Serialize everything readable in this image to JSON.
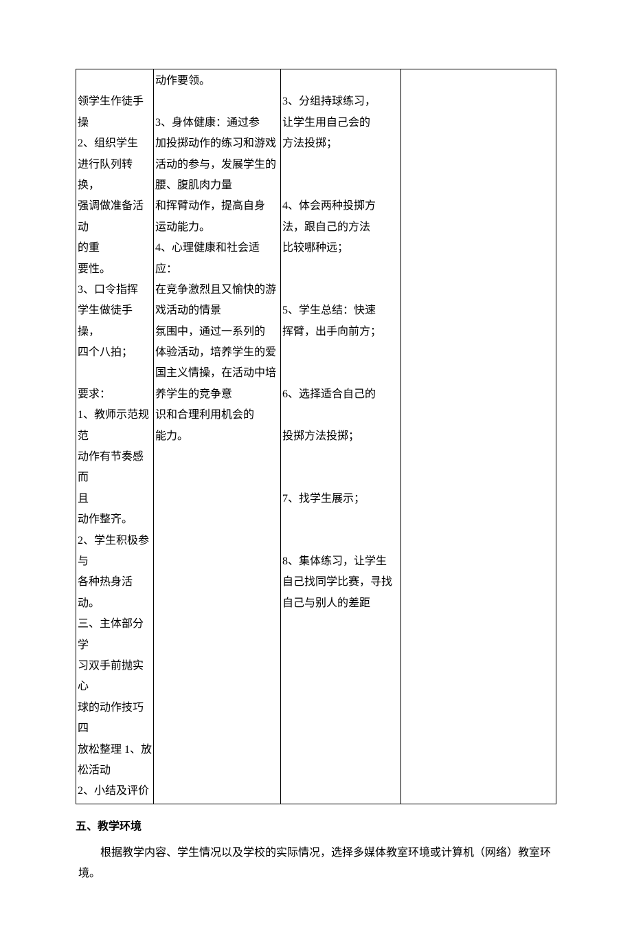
{
  "table": {
    "col1": [
      "",
      "领学生作徒手操",
      "2、组织学生",
      "进行队列转换，",
      "强调做准备活动",
      "的重",
      "要性。",
      "3、口令指挥",
      "学生做徒手操，",
      "四个八拍；",
      "",
      "要求：",
      "1、教师示范规范",
      "动作有节奏感而",
      "且",
      "动作整齐。",
      "2、学生积极参与",
      "各种热身活动。",
      "三、主体部分学",
      "习双手前抛实心",
      "球的动作技巧四",
      "放松整理 1、放",
      "松活动",
      "2、小结及评价"
    ],
    "col2": [
      "动作要领。",
      "",
      "3、身体健康：通过参",
      "加投掷动作的练习和游戏",
      "活动的参与，发展学生的",
      "腰、腹肌肉力量",
      "和挥臂动作，提高自身",
      "运动能力。",
      "4、心理健康和社会适应：",
      "在竞争激烈且又愉快的游",
      "戏活动的情景",
      "氛围中，通过一系列的",
      "体验活动，培养学生的爱",
      "国主义情操，在活动中培",
      "养学生的竞争意",
      "识和合理利用机会的",
      "能力。"
    ],
    "col3": [
      "",
      "3、分组持球练习，",
      "让学生用自己会的",
      "方法投掷；",
      "",
      "",
      "4、体会两种投掷方",
      "法，跟自己的方法",
      "比较哪种远；",
      "",
      "",
      "5、学生总结：快速",
      "挥臂，出手向前方；",
      "",
      "",
      "6、选择适合自己的",
      "",
      "投掷方法投掷；",
      "",
      "",
      "7、找学生展示；",
      "",
      "",
      "8、集体练习，让学生",
      "自己找同学比赛，寻找",
      "自己与别人的差距"
    ],
    "col4": []
  },
  "section": {
    "heading": "五、教学环境",
    "paragraph": "根据教学内容、学生情况以及学校的实际情况，选择多媒体教室环境或计算机（网络）教室环境。"
  }
}
